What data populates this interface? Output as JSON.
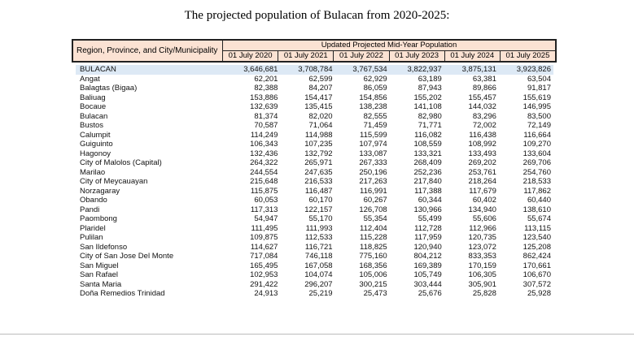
{
  "title": "The projected population of Bulacan from 2020-2025:",
  "table": {
    "region_header": "Region, Province, and City/Municipality",
    "group_header": "Updated Projected Mid-Year Population",
    "years": [
      "01 July 2020",
      "01 July 2021",
      "01 July 2022",
      "01 July 2023",
      "01 July 2024",
      "01 July 2025"
    ],
    "rows": [
      {
        "name": "BULACAN",
        "values": [
          "3,646,681",
          "3,708,784",
          "3,767,534",
          "3,822,937",
          "3,875,131",
          "3,923,826"
        ]
      },
      {
        "name": "Angat",
        "values": [
          "62,201",
          "62,599",
          "62,929",
          "63,189",
          "63,381",
          "63,504"
        ]
      },
      {
        "name": "Balagtas (Bigaa)",
        "values": [
          "82,388",
          "84,207",
          "86,059",
          "87,943",
          "89,866",
          "91,817"
        ]
      },
      {
        "name": "Baliuag",
        "values": [
          "153,886",
          "154,417",
          "154,856",
          "155,202",
          "155,457",
          "155,619"
        ]
      },
      {
        "name": "Bocaue",
        "values": [
          "132,639",
          "135,415",
          "138,238",
          "141,108",
          "144,032",
          "146,995"
        ]
      },
      {
        "name": "Bulacan",
        "values": [
          "81,374",
          "82,020",
          "82,555",
          "82,980",
          "83,296",
          "83,500"
        ]
      },
      {
        "name": "Bustos",
        "values": [
          "70,587",
          "71,064",
          "71,459",
          "71,771",
          "72,002",
          "72,149"
        ]
      },
      {
        "name": "Calumpit",
        "values": [
          "114,249",
          "114,988",
          "115,599",
          "116,082",
          "116,438",
          "116,664"
        ]
      },
      {
        "name": "Guiguinto",
        "values": [
          "106,343",
          "107,235",
          "107,974",
          "108,559",
          "108,992",
          "109,270"
        ]
      },
      {
        "name": "Hagonoy",
        "values": [
          "132,436",
          "132,792",
          "133,087",
          "133,321",
          "133,493",
          "133,604"
        ]
      },
      {
        "name": "City of Malolos (Capital)",
        "values": [
          "264,322",
          "265,971",
          "267,333",
          "268,409",
          "269,202",
          "269,706"
        ]
      },
      {
        "name": "Marilao",
        "values": [
          "244,554",
          "247,635",
          "250,196",
          "252,236",
          "253,761",
          "254,760"
        ]
      },
      {
        "name": "City of Meycauayan",
        "values": [
          "215,648",
          "216,533",
          "217,263",
          "217,840",
          "218,264",
          "218,533"
        ]
      },
      {
        "name": "Norzagaray",
        "values": [
          "115,875",
          "116,487",
          "116,991",
          "117,388",
          "117,679",
          "117,862"
        ]
      },
      {
        "name": "Obando",
        "values": [
          "60,053",
          "60,170",
          "60,267",
          "60,344",
          "60,402",
          "60,440"
        ]
      },
      {
        "name": "Pandi",
        "values": [
          "117,313",
          "122,157",
          "126,708",
          "130,966",
          "134,940",
          "138,610"
        ]
      },
      {
        "name": "Paombong",
        "values": [
          "54,947",
          "55,170",
          "55,354",
          "55,499",
          "55,606",
          "55,674"
        ]
      },
      {
        "name": "Plaridel",
        "values": [
          "111,495",
          "111,993",
          "112,404",
          "112,728",
          "112,966",
          "113,115"
        ]
      },
      {
        "name": "Pulilan",
        "values": [
          "109,875",
          "112,533",
          "115,228",
          "117,959",
          "120,735",
          "123,540"
        ]
      },
      {
        "name": "San Ildefonso",
        "values": [
          "114,627",
          "116,721",
          "118,825",
          "120,940",
          "123,072",
          "125,208"
        ]
      },
      {
        "name": "City of San Jose Del Monte",
        "values": [
          "717,084",
          "746,118",
          "775,160",
          "804,212",
          "833,353",
          "862,424"
        ]
      },
      {
        "name": "San Miguel",
        "values": [
          "165,495",
          "167,058",
          "168,356",
          "169,389",
          "170,159",
          "170,661"
        ]
      },
      {
        "name": "San Rafael",
        "values": [
          "102,953",
          "104,074",
          "105,006",
          "105,749",
          "106,305",
          "106,670"
        ]
      },
      {
        "name": "Santa Maria",
        "values": [
          "291,422",
          "296,207",
          "300,215",
          "303,444",
          "305,901",
          "307,572"
        ]
      },
      {
        "name": "Doña Remedios Trinidad",
        "values": [
          "24,913",
          "25,219",
          "25,473",
          "25,676",
          "25,828",
          "25,928"
        ]
      }
    ]
  }
}
